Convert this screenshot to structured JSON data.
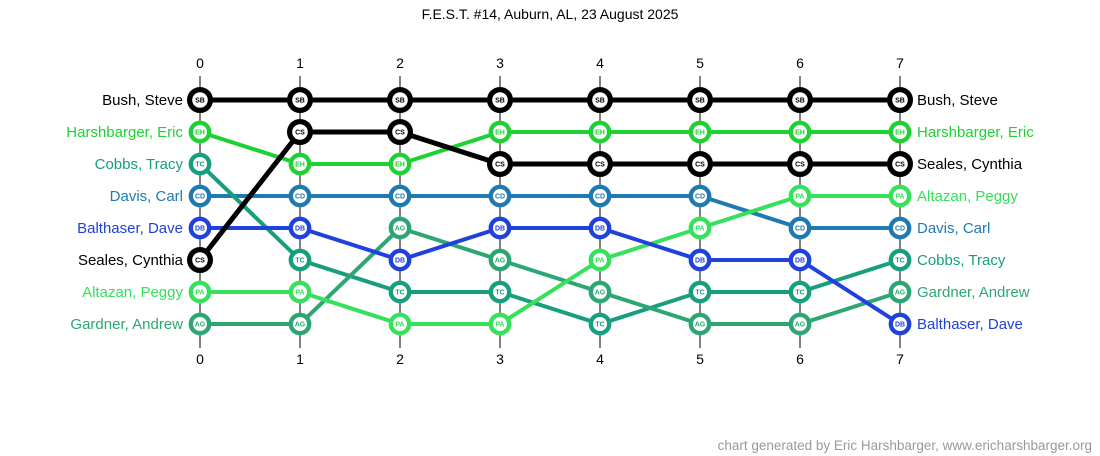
{
  "title": "F.E.S.T. #14, Auburn, AL, 23 August 2025",
  "footer_credit": "chart generated by Eric Harshbarger, www.ericharshbarger.org",
  "chart_data": {
    "type": "line",
    "subtype": "bump-rank-chart",
    "title": "F.E.S.T. #14, Auburn, AL, 23 August 2025",
    "xlabel": "",
    "ylabel": "",
    "grid": false,
    "x": [
      0,
      1,
      2,
      3,
      4,
      5,
      6,
      7
    ],
    "tick_labels": [
      "0",
      "1",
      "2",
      "3",
      "4",
      "5",
      "6",
      "7"
    ],
    "rank_min": 1,
    "rank_max": 8,
    "legend_position": "player-name-labels-left-and-right",
    "series": [
      {
        "name": "Bush, Steve",
        "initials": "SB",
        "color": "#000000",
        "ranks": [
          1,
          1,
          1,
          1,
          1,
          1,
          1,
          1
        ]
      },
      {
        "name": "Harshbarger, Eric",
        "initials": "EH",
        "color": "#1ed132",
        "ranks": [
          2,
          3,
          3,
          2,
          2,
          2,
          2,
          2
        ]
      },
      {
        "name": "Cobbs, Tracy",
        "initials": "TC",
        "color": "#179e7d",
        "ranks": [
          3,
          6,
          7,
          7,
          8,
          7,
          7,
          6
        ]
      },
      {
        "name": "Davis, Carl",
        "initials": "CD",
        "color": "#1e7ab0",
        "ranks": [
          4,
          4,
          4,
          4,
          4,
          4,
          5,
          5
        ]
      },
      {
        "name": "Balthaser, Dave",
        "initials": "DB",
        "color": "#2041dc",
        "ranks": [
          5,
          5,
          6,
          5,
          5,
          6,
          6,
          8
        ]
      },
      {
        "name": "Seales, Cynthia",
        "initials": "CS",
        "color": "#000000",
        "ranks": [
          6,
          2,
          2,
          3,
          3,
          3,
          3,
          3
        ]
      },
      {
        "name": "Altazan, Peggy",
        "initials": "PA",
        "color": "#35e05a",
        "ranks": [
          7,
          7,
          8,
          8,
          6,
          5,
          4,
          4
        ]
      },
      {
        "name": "Gardner, Andrew",
        "initials": "AG",
        "color": "#2da673",
        "ranks": [
          8,
          8,
          5,
          6,
          7,
          8,
          8,
          7
        ]
      }
    ],
    "left_axis_order": [
      "Bush, Steve",
      "Harshbarger, Eric",
      "Cobbs, Tracy",
      "Davis, Carl",
      "Balthaser, Dave",
      "Seales, Cynthia",
      "Altazan, Peggy",
      "Gardner, Andrew"
    ],
    "right_axis_order": [
      "Bush, Steve",
      "Harshbarger, Eric",
      "Seales, Cynthia",
      "Altazan, Peggy",
      "Davis, Carl",
      "Cobbs, Tracy",
      "Gardner, Andrew",
      "Balthaser, Dave"
    ]
  }
}
